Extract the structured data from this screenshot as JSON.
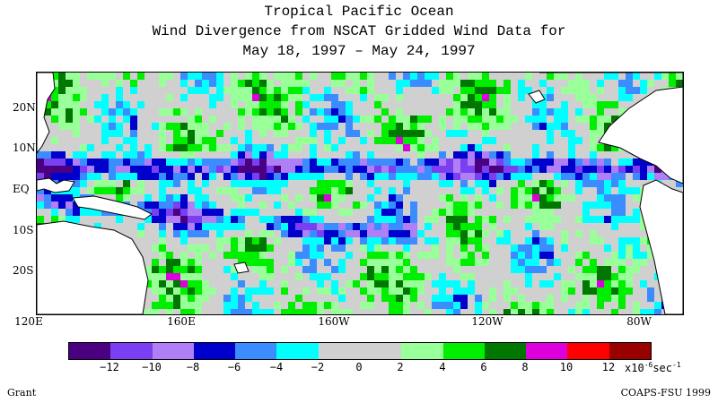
{
  "title": {
    "line1": "Tropical Pacific Ocean",
    "line2": "Wind Divergence from NSCAT Gridded Wind Data for",
    "line3": "May 18, 1997 – May 24, 1997"
  },
  "map": {
    "latitude_labels": [
      "20N",
      "10N",
      "EQ",
      "10S",
      "20S"
    ],
    "longitude_labels": [
      "120E",
      "160E",
      "160W",
      "120W",
      "80W"
    ],
    "lon_range": [
      120,
      290
    ],
    "lat_range": [
      -30,
      30
    ],
    "land_color": "#ffffff",
    "coast_color": "#000000"
  },
  "colorbar": {
    "colors": [
      "#4b0082",
      "#7b3ff2",
      "#b07ff5",
      "#0000cc",
      "#3a8cff",
      "#00ffff",
      "#d0d0d0",
      "#d0d0d0",
      "#99ff99",
      "#00ee00",
      "#007700",
      "#dd00dd",
      "#ff0000",
      "#990000"
    ],
    "tick_labels": [
      "−12",
      "−10",
      "−8",
      "−6",
      "−4",
      "−2",
      "0",
      "2",
      "4",
      "6",
      "8",
      "10",
      "12"
    ],
    "units_prefix": "x10",
    "units_exponent": "-6",
    "units_suffix": "sec",
    "units_suffix_exponent": "-1"
  },
  "footer": {
    "left": "Grant",
    "right": "COAPS-FSU 1999"
  }
}
